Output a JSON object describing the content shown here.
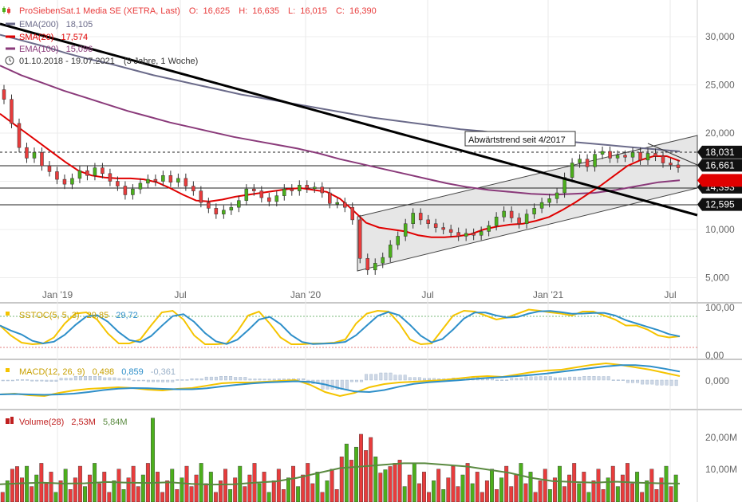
{
  "header": {
    "instrument": "ProSiebenSat.1 Media SE (XETRA, Last)",
    "ohlc": [
      {
        "label": "O:",
        "value": "16,625"
      },
      {
        "label": "H:",
        "value": "16,635"
      },
      {
        "label": "L:",
        "value": "16,015"
      },
      {
        "label": "C:",
        "value": "16,390"
      }
    ]
  },
  "legend": [
    {
      "name": "EMA(200)",
      "value": "18,105",
      "color": "#6b6b8a"
    },
    {
      "name": "SMA(20)",
      "value": "17,574",
      "color": "#e00000"
    },
    {
      "name": "EMA(100)",
      "value": "15,096",
      "color": "#8a3a7a"
    }
  ],
  "period": {
    "range": "01.10.2018 - 19.07.2021",
    "duration": "(3 Jahre, 1 Woche)"
  },
  "annotation": "Abwärtstrend seit 4/2017",
  "chart_data": [
    {
      "type": "candlestick",
      "panel": "price",
      "y_ticks": [
        "30,000",
        "25,000",
        "20,000",
        "15,000",
        "10,000",
        "5,000"
      ],
      "x_ticks": [
        "Jan '19",
        "Jul",
        "Jan '20",
        "Jul",
        "Jan '21",
        "Jul"
      ],
      "ylim": [
        3000,
        33500
      ],
      "horizontal_levels": [
        {
          "value": 18.031,
          "label": "18,031",
          "style": "dashed"
        },
        {
          "value": 16.661,
          "label": "16,661",
          "style": "solid"
        },
        {
          "value": 14.393,
          "label": "14,393",
          "style": "solid"
        },
        {
          "value": 12.595,
          "label": "12,595",
          "style": "solid"
        }
      ],
      "partial_tag": "15,096",
      "closes": [
        23.5,
        21.0,
        18.5,
        17.4,
        18.0,
        16.6,
        16.0,
        15.2,
        14.7,
        15.3,
        16.1,
        15.6,
        16.4,
        15.8,
        15.0,
        14.5,
        13.6,
        14.2,
        14.8,
        15.2,
        15.0,
        15.6,
        14.9,
        15.3,
        14.5,
        14.0,
        12.8,
        12.2,
        11.6,
        12.0,
        12.3,
        13.0,
        14.2,
        14.0,
        13.3,
        12.9,
        13.5,
        14.2,
        14.0,
        14.6,
        14.3,
        14.4,
        13.8,
        12.7,
        12.8,
        12.3,
        11.0,
        7.0,
        5.8,
        6.5,
        7.1,
        8.4,
        9.3,
        10.6,
        11.7,
        11.0,
        10.6,
        10.2,
        10.0,
        9.7,
        9.3,
        9.6,
        9.4,
        9.8,
        10.4,
        11.3,
        11.9,
        11.2,
        10.6,
        11.6,
        12.2,
        12.8,
        13.2,
        13.8,
        15.4,
        16.9,
        17.3,
        16.5,
        17.8,
        18.1,
        17.4,
        17.7,
        17.5,
        18.0,
        17.2,
        17.9,
        17.6,
        16.9,
        16.7,
        16.4
      ],
      "ema200": [
        30.2,
        29.6,
        29.0,
        28.3,
        27.7,
        27.2,
        26.6,
        26.0,
        25.5,
        25.0,
        24.5,
        24.0,
        23.6,
        23.2,
        22.8,
        22.4,
        22.0,
        21.6,
        21.3,
        21.0,
        20.7,
        20.4,
        20.2,
        19.9,
        19.6,
        19.4,
        19.1,
        18.9,
        18.7,
        18.5,
        18.3,
        18.1
      ],
      "sma20": [
        22.0,
        21.0,
        20.0,
        19.0,
        18.0,
        17.0,
        16.1,
        15.6,
        15.4,
        15.3,
        15.3,
        15.2,
        14.9,
        14.3,
        13.6,
        13.0,
        12.9,
        13.1,
        13.4,
        13.6,
        13.8,
        14.0,
        14.2,
        14.3,
        14.1,
        13.9,
        13.2,
        12.0,
        10.7,
        10.2,
        10.0,
        9.8,
        9.4,
        9.2,
        9.2,
        9.3,
        9.5,
        10.0,
        10.3,
        10.5,
        10.6,
        10.9,
        11.3,
        12.0,
        12.8,
        13.7,
        14.6,
        15.6,
        16.6,
        17.2,
        17.6,
        17.6,
        17.1
      ],
      "ema100": [
        27.0,
        26.0,
        25.2,
        24.4,
        23.7,
        23.0,
        22.3,
        21.7,
        21.1,
        20.6,
        20.1,
        19.6,
        19.2,
        18.8,
        18.4,
        17.9,
        17.3,
        16.8,
        16.3,
        15.8,
        15.3,
        14.8,
        14.4,
        14.1,
        13.9,
        13.7,
        13.6,
        13.7,
        13.8,
        14.1,
        14.5,
        14.9,
        15.1
      ]
    },
    {
      "type": "line",
      "panel": "oscillator",
      "series_label": "SSTOC(5, 5, 3)",
      "values": [
        "29,85",
        "29,72"
      ],
      "y_ticks": [
        "100,00",
        "0,00"
      ],
      "ylim": [
        0,
        100
      ]
    },
    {
      "type": "line",
      "panel": "macd",
      "series_label": "MACD(12, 26, 9)",
      "values": [
        "0,498",
        "0,859",
        "-0,361"
      ],
      "y_ticks": [
        "0,000"
      ]
    },
    {
      "type": "bar",
      "panel": "volume",
      "series_label": "Volume(28)",
      "values": [
        "2,53M",
        "5,84M"
      ],
      "y_ticks": [
        "20,00M",
        "10,00M"
      ],
      "ylim": [
        0,
        27
      ]
    }
  ],
  "colors": {
    "up": "#4caf1c",
    "down": "#e83c3c",
    "trend": "#000000",
    "channel_fill": "#e6e6e6",
    "stoch_k": "#f5c400",
    "stoch_d": "#2e8fc9",
    "vol_ma": "#5a8a40",
    "axis_tag": "#111111"
  }
}
